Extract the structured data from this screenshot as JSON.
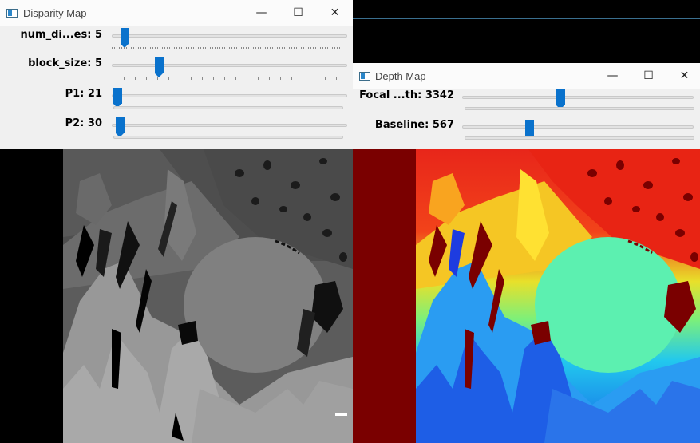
{
  "disparity_window": {
    "title": "Disparity Map",
    "controls": {
      "minimize": "—",
      "maximize": "☐",
      "close": "✕"
    },
    "trackbars": [
      {
        "label": "num_di...es: 5",
        "position": 0.05
      },
      {
        "label": "block_size: 5",
        "position": 0.2
      },
      {
        "label": "P1: 21",
        "position": 0.0
      },
      {
        "label": "P2: 30",
        "position": 0.01
      }
    ]
  },
  "depth_window": {
    "title": "Depth Map",
    "controls": {
      "minimize": "—",
      "maximize": "☐",
      "close": "✕"
    },
    "trackbars": [
      {
        "label": "Focal ...th: 3342",
        "position": 0.42
      },
      {
        "label": "Baseline: 567",
        "position": 0.28
      }
    ]
  },
  "colors": {
    "accent": "#0a72cc",
    "depth_left_band": "#7a0000"
  }
}
